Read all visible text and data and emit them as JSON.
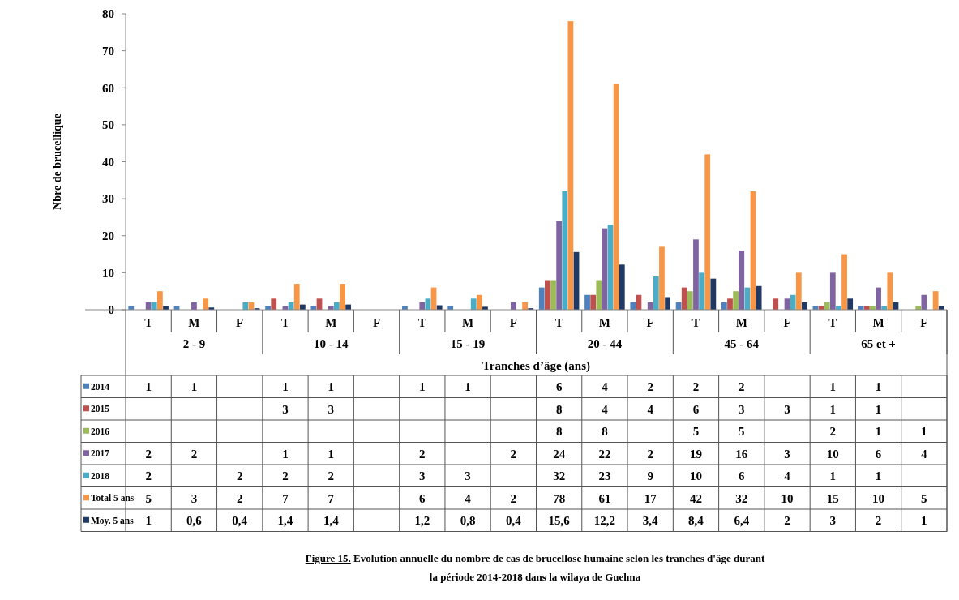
{
  "chart_data": {
    "type": "bar",
    "title": "Figure 15. Evolution  annuelle du nombre de cas de brucellose humaine selon les tranches d'âge durant  la période  2014-2018 dans la wilaya  de Guelma",
    "xlabel": "Tranches d’âge (ans)",
    "ylabel": "Nbre de brucellique",
    "categories": [
      "T",
      "M",
      "F",
      "T",
      "M",
      "F",
      "T",
      "M",
      "F",
      "T",
      "M",
      "F",
      "T",
      "M",
      "F",
      "T",
      "M",
      "F"
    ],
    "annotations": [
      "2 - 9",
      "10 - 14",
      "15 - 19",
      "20 - 44",
      "45 - 64",
      "65 et +"
    ],
    "ylim": [
      0,
      80
    ],
    "yticks": [
      0,
      10,
      20,
      30,
      40,
      50,
      60,
      70,
      80
    ],
    "grid": false,
    "legend": "bottom",
    "series": [
      {
        "name": "2014",
        "color": "#4f81bd",
        "values": [
          1,
          1,
          null,
          1,
          1,
          null,
          1,
          1,
          null,
          6,
          4,
          2,
          2,
          2,
          null,
          1,
          1,
          null
        ],
        "value_labels": [
          "1",
          "1",
          null,
          "1",
          "1",
          null,
          "1",
          "1",
          null,
          "6",
          "4",
          "2",
          "2",
          "2",
          null,
          "1",
          "1",
          null
        ]
      },
      {
        "name": "2015",
        "color": "#c0504d",
        "values": [
          null,
          null,
          null,
          3,
          3,
          null,
          null,
          null,
          null,
          8,
          4,
          4,
          6,
          3,
          3,
          1,
          1,
          null
        ],
        "value_labels": [
          null,
          null,
          null,
          "3",
          "3",
          null,
          null,
          null,
          null,
          "8",
          "4",
          "4",
          "6",
          "3",
          "3",
          "1",
          "1",
          null
        ]
      },
      {
        "name": "2016",
        "color": "#9bbb59",
        "values": [
          null,
          null,
          null,
          null,
          null,
          null,
          null,
          null,
          null,
          8,
          8,
          null,
          5,
          5,
          null,
          2,
          1,
          1
        ],
        "value_labels": [
          null,
          null,
          null,
          null,
          null,
          null,
          null,
          null,
          null,
          "8",
          "8",
          null,
          "5",
          "5",
          null,
          "2",
          "1",
          "1"
        ]
      },
      {
        "name": "2017",
        "color": "#8064a2",
        "values": [
          2,
          2,
          null,
          1,
          1,
          null,
          2,
          null,
          2,
          24,
          22,
          2,
          19,
          16,
          3,
          10,
          6,
          4
        ],
        "value_labels": [
          "2",
          "2",
          null,
          "1",
          "1",
          null,
          "2",
          null,
          "2",
          "24",
          "22",
          "2",
          "19",
          "16",
          "3",
          "10",
          "6",
          "4"
        ]
      },
      {
        "name": "2018",
        "color": "#4bacc6",
        "values": [
          2,
          null,
          2,
          2,
          2,
          null,
          3,
          3,
          null,
          32,
          23,
          9,
          10,
          6,
          4,
          1,
          1,
          null
        ],
        "value_labels": [
          "2",
          null,
          "2",
          "2",
          "2",
          null,
          "3",
          "3",
          null,
          "32",
          "23",
          "9",
          "10",
          "6",
          "4",
          "1",
          "1",
          null
        ]
      },
      {
        "name": "Total 5 ans",
        "color": "#f79646",
        "values": [
          5,
          3,
          2,
          7,
          7,
          null,
          6,
          4,
          2,
          78,
          61,
          17,
          42,
          32,
          10,
          15,
          10,
          5
        ],
        "value_labels": [
          "5",
          "3",
          "2",
          "7",
          "7",
          null,
          "6",
          "4",
          "2",
          "78",
          "61",
          "17",
          "42",
          "32",
          "10",
          "15",
          "10",
          "5"
        ]
      },
      {
        "name": "Moy. 5 ans",
        "color": "#1f3864",
        "values": [
          1,
          0.6,
          0.4,
          1.4,
          1.4,
          null,
          1.2,
          0.8,
          0.4,
          15.6,
          12.2,
          3.4,
          8.4,
          6.4,
          2,
          3,
          2,
          1
        ],
        "value_labels": [
          "1",
          "0,6",
          "0,4",
          "1,4",
          "1,4",
          null,
          "1,2",
          "0,8",
          "0,4",
          "15,6",
          "12,2",
          "3,4",
          "8,4",
          "6,4",
          "2",
          "3",
          "2",
          "1"
        ]
      }
    ]
  }
}
